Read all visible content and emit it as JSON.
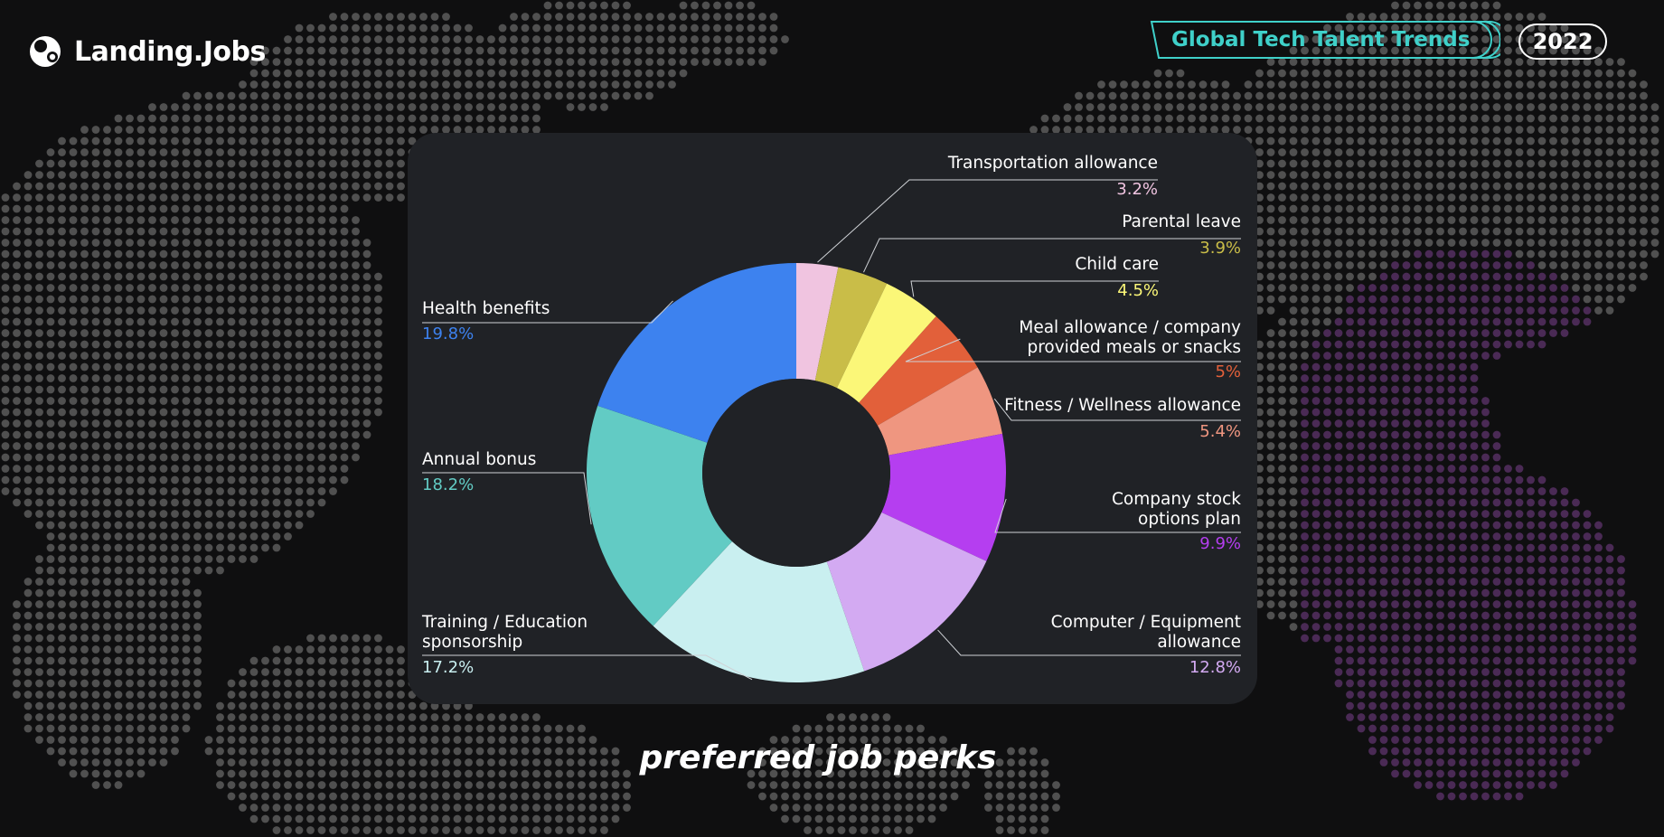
{
  "brand": {
    "name": "Landing.Jobs",
    "logo_icon": "blob-logo-icon"
  },
  "header": {
    "report_title": "Global Tech Talent Trends",
    "year": "2022",
    "accent_color": "#3fd0c9"
  },
  "caption": "preferred job perks",
  "chart_data": {
    "type": "pie",
    "donut": true,
    "title": "",
    "slices": [
      {
        "label": "Transportation allowance",
        "value": 3.2,
        "display": "3.2%",
        "color": "#f0c4e0"
      },
      {
        "label": "Parental leave",
        "value": 3.9,
        "display": "3.9%",
        "color": "#c9bd48"
      },
      {
        "label": "Child care",
        "value": 4.5,
        "display": "4.5%",
        "color": "#fbf778"
      },
      {
        "label": "Meal allowance / company provided meals or snacks",
        "lines": [
          "Meal allowance / company",
          "provided meals or snacks"
        ],
        "value": 5.0,
        "display": "5%",
        "color": "#e2603a"
      },
      {
        "label": "Fitness / Wellness allowance",
        "value": 5.4,
        "display": "5.4%",
        "color": "#ef9680"
      },
      {
        "label": "Company stock options plan",
        "lines": [
          "Company stock",
          "options plan"
        ],
        "value": 9.9,
        "display": "9.9%",
        "color": "#b53ef0"
      },
      {
        "label": "Computer / Equipment allowance",
        "lines": [
          "Computer / Equipment",
          "allowance"
        ],
        "value": 12.8,
        "display": "12.8%",
        "color": "#d3aaf2"
      },
      {
        "label": "Training / Education sponsorship",
        "lines": [
          "Training / Education",
          "sponsorship"
        ],
        "value": 17.2,
        "display": "17.2%",
        "color": "#c9eff0"
      },
      {
        "label": "Annual bonus",
        "value": 18.2,
        "display": "18.2%",
        "color": "#62cbc4"
      },
      {
        "label": "Health benefits",
        "value": 19.8,
        "display": "19.8%",
        "color": "#3d82ef"
      }
    ]
  }
}
